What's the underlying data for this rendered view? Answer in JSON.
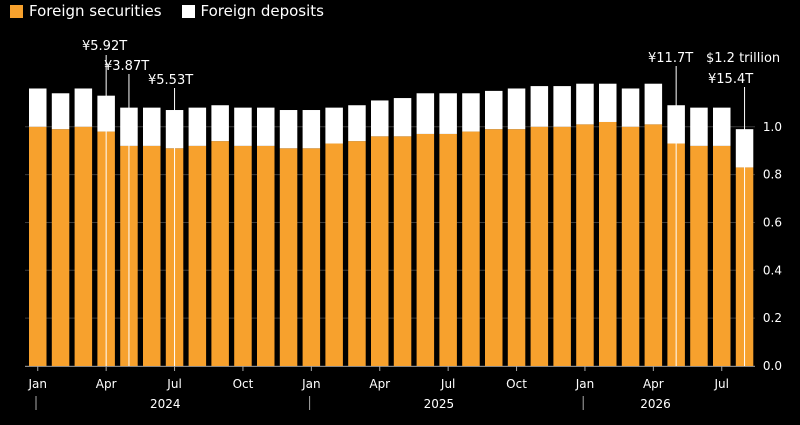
{
  "legend": {
    "securities": "Foreign securities",
    "deposits": "Foreign deposits"
  },
  "colors": {
    "background": "#000000",
    "securities": "#f7a12d",
    "deposits": "#ffffff",
    "grid": "#3a3a3a"
  },
  "chart_data": {
    "type": "bar",
    "stacked": true,
    "grid": true,
    "legend_position": "top-left",
    "y_axis_side": "right",
    "ylim": [
      0,
      1.3
    ],
    "yticks": [
      "0.0",
      "0.2",
      "0.4",
      "0.6",
      "0.8",
      "1.0"
    ],
    "ytick_values": [
      0,
      0.2,
      0.4,
      0.6,
      0.8,
      1.0
    ],
    "x_month_ticks": [
      {
        "label": "Jan",
        "index": 0
      },
      {
        "label": "Apr",
        "index": 3
      },
      {
        "label": "Jul",
        "index": 6
      },
      {
        "label": "Oct",
        "index": 9
      },
      {
        "label": "Jan",
        "index": 12
      },
      {
        "label": "Apr",
        "index": 15
      },
      {
        "label": "Jul",
        "index": 18
      },
      {
        "label": "Oct",
        "index": 21
      },
      {
        "label": "Jan",
        "index": 24
      },
      {
        "label": "Apr",
        "index": 27
      },
      {
        "label": "Jul",
        "index": 30
      }
    ],
    "x_year_ticks": [
      {
        "label": "2024",
        "start": 0,
        "end": 12
      },
      {
        "label": "2025",
        "start": 12,
        "end": 24
      },
      {
        "label": "2026",
        "start": 24,
        "end": 31
      }
    ],
    "series": [
      {
        "name": "Foreign securities",
        "values": [
          1.0,
          0.99,
          1.0,
          0.98,
          0.92,
          0.92,
          0.91,
          0.92,
          0.94,
          0.92,
          0.92,
          0.91,
          0.91,
          0.93,
          0.94,
          0.96,
          0.96,
          0.97,
          0.97,
          0.98,
          0.99,
          0.99,
          1.0,
          1.0,
          1.01,
          1.02,
          1.0,
          1.01,
          0.93,
          0.92,
          0.92,
          0.83
        ]
      },
      {
        "name": "Foreign deposits",
        "values": [
          0.16,
          0.15,
          0.16,
          0.15,
          0.16,
          0.16,
          0.16,
          0.16,
          0.15,
          0.16,
          0.16,
          0.16,
          0.16,
          0.15,
          0.15,
          0.15,
          0.16,
          0.17,
          0.17,
          0.16,
          0.16,
          0.17,
          0.17,
          0.17,
          0.17,
          0.16,
          0.16,
          0.17,
          0.16,
          0.16,
          0.16,
          0.16
        ]
      }
    ],
    "annotations": [
      {
        "text": "¥5.92T",
        "index": 3
      },
      {
        "text": "¥3.87T",
        "index": 4
      },
      {
        "text": "¥5.53T",
        "index": 6
      },
      {
        "text": "¥11.7T",
        "index": 28
      },
      {
        "text": "$1.2 trillion",
        "index": 31
      },
      {
        "text": "¥15.4T",
        "index": 31
      }
    ]
  }
}
